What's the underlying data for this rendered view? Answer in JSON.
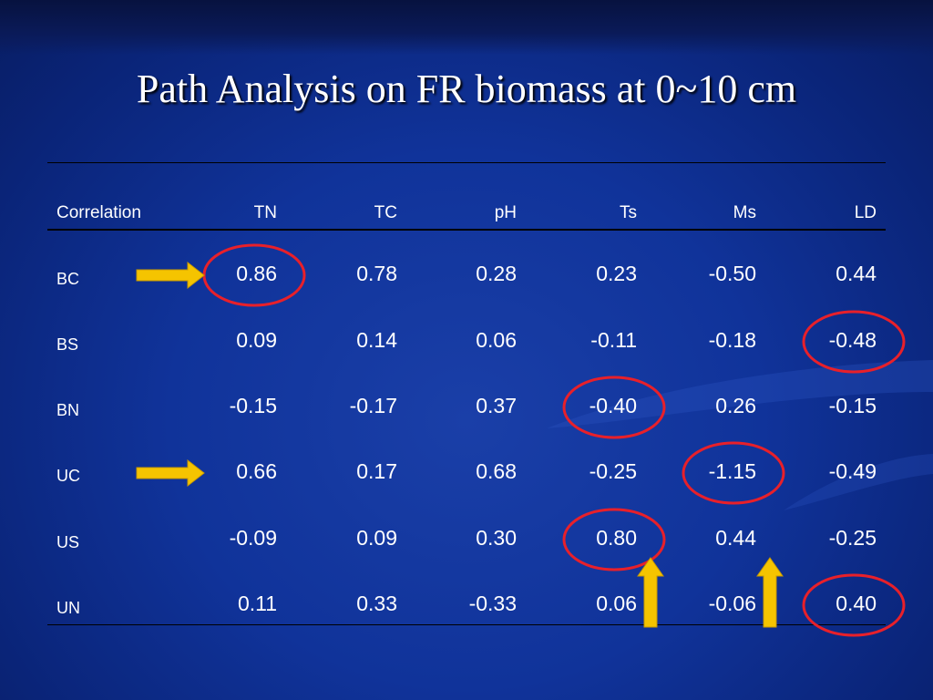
{
  "slide": {
    "title": "Path Analysis on FR biomass at 0~10 cm"
  },
  "table": {
    "headers": [
      "Correlation",
      "TN",
      "TC",
      "pH",
      "Ts",
      "Ms",
      "LD"
    ],
    "rows": [
      {
        "label": "BC",
        "values": [
          "0.86",
          "0.78",
          "0.28",
          "0.23",
          "-0.50",
          "0.44"
        ]
      },
      {
        "label": "BS",
        "values": [
          "0.09",
          "0.14",
          "0.06",
          "-0.11",
          "-0.18",
          "-0.48"
        ]
      },
      {
        "label": "BN",
        "values": [
          "-0.15",
          "-0.17",
          "0.37",
          "-0.40",
          "0.26",
          "-0.15"
        ]
      },
      {
        "label": "UC",
        "values": [
          "0.66",
          "0.17",
          "0.68",
          "-0.25",
          "-1.15",
          "-0.49"
        ]
      },
      {
        "label": "US",
        "values": [
          "-0.09",
          "0.09",
          "0.30",
          "0.80",
          "0.44",
          "-0.25"
        ]
      },
      {
        "label": "UN",
        "values": [
          "0.11",
          "0.33",
          "-0.33",
          "0.06",
          "-0.06",
          "0.40"
        ]
      }
    ]
  },
  "highlights": {
    "circled_cells": [
      {
        "row": "BC",
        "column": "TN"
      },
      {
        "row": "BS",
        "column": "LD"
      },
      {
        "row": "BN",
        "column": "Ts"
      },
      {
        "row": "UC",
        "column": "Ms"
      },
      {
        "row": "US",
        "column": "Ts"
      },
      {
        "row": "UN",
        "column": "LD"
      }
    ],
    "right_arrows_rows": [
      "BC",
      "UC"
    ],
    "up_arrows_columns": [
      "Ts",
      "Ms"
    ]
  },
  "colors": {
    "background": "#10339a",
    "circle": "#e8202a",
    "arrow": "#f5c400",
    "text": "#ffffff"
  }
}
